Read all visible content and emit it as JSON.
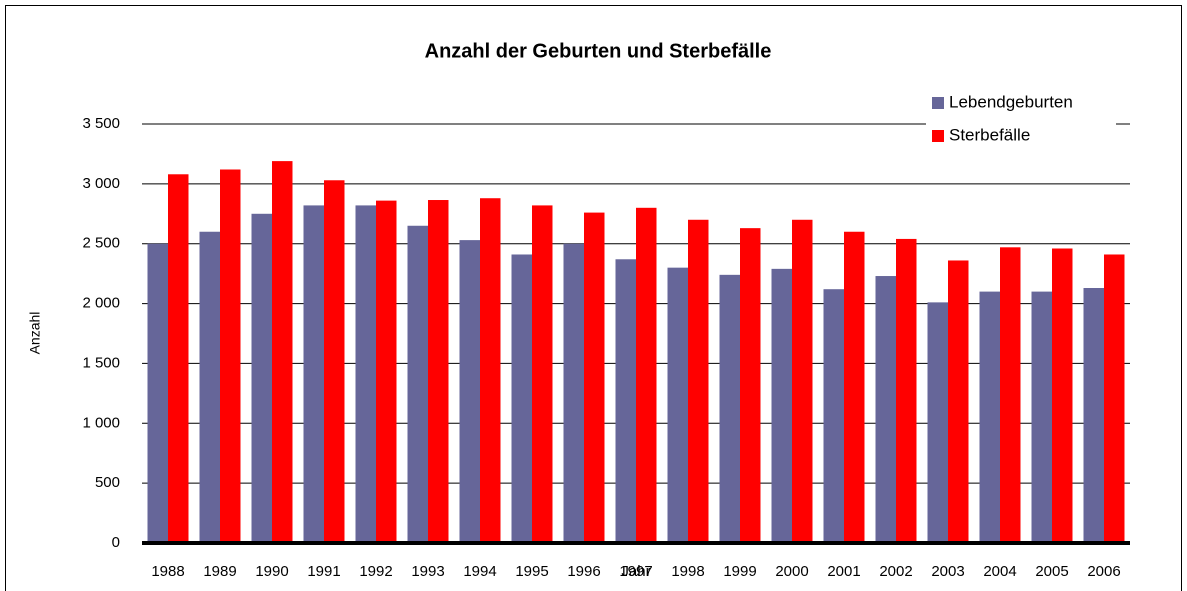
{
  "chart_data": {
    "type": "bar",
    "title": "Anzahl der Geburten und Sterbefälle",
    "x_label": "Jahr",
    "y_label": "Anzahl",
    "categories": [
      "1988",
      "1989",
      "1990",
      "1991",
      "1992",
      "1993",
      "1994",
      "1995",
      "1996",
      "1997",
      "1998",
      "1999",
      "2000",
      "2001",
      "2002",
      "2003",
      "2004",
      "2005",
      "2006"
    ],
    "series": [
      {
        "name": "Lebendgeburten",
        "color": "#666699",
        "values": [
          2500,
          2600,
          2750,
          2820,
          2820,
          2650,
          2530,
          2410,
          2500,
          2370,
          2300,
          2240,
          2290,
          2120,
          2230,
          2010,
          2100,
          2100,
          2130
        ]
      },
      {
        "name": "Sterbefälle",
        "color": "#ff0000",
        "values": [
          3080,
          3120,
          3190,
          3030,
          2860,
          2865,
          2880,
          2820,
          2760,
          2800,
          2700,
          2630,
          2700,
          2600,
          2540,
          2360,
          2470,
          2460,
          2410
        ]
      }
    ],
    "ylim": [
      0,
      3500
    ],
    "yticks": [
      0,
      {
        "value": 500,
        "label": "500"
      },
      {
        "value": 1000,
        "label": "1 000"
      },
      {
        "value": 1500,
        "label": "1 500"
      },
      {
        "value": 2000,
        "label": "2 000"
      },
      {
        "value": 2500,
        "label": "2 500"
      },
      {
        "value": 3000,
        "label": "3 000"
      },
      {
        "value": 3500,
        "label": "3 500"
      }
    ],
    "grid": true,
    "legend": "top-right"
  }
}
